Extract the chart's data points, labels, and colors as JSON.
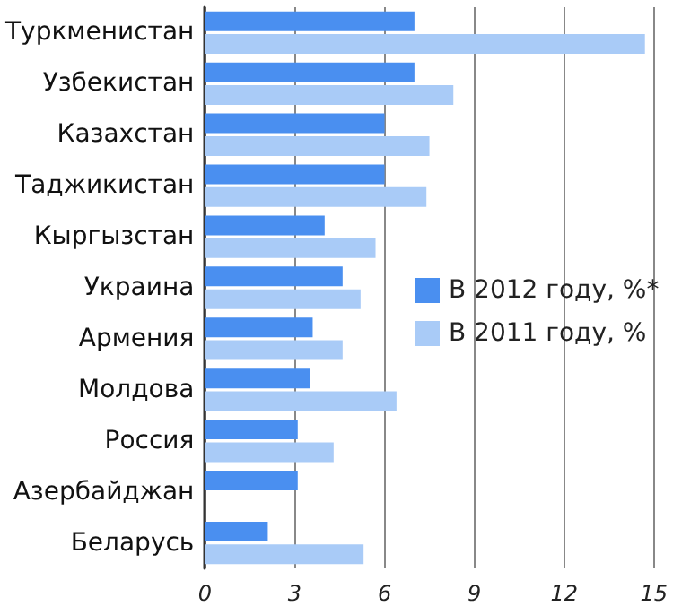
{
  "chart_data": {
    "type": "bar",
    "orientation": "horizontal",
    "categories": [
      "Туркменистан",
      "Узбекистан",
      "Казахстан",
      "Таджикистан",
      "Кыргызстан",
      "Украина",
      "Армения",
      "Молдова",
      "Россия",
      "Азербайджан",
      "Беларусь"
    ],
    "series": [
      {
        "name": "В 2012 году, %*",
        "color": "#4a8ff0",
        "values": [
          7.0,
          7.0,
          6.0,
          6.0,
          4.0,
          4.6,
          3.6,
          3.5,
          3.1,
          3.1,
          2.1
        ]
      },
      {
        "name": "В 2011 году, %",
        "color": "#a9cbf7",
        "values": [
          14.7,
          8.3,
          7.5,
          7.4,
          5.7,
          5.2,
          4.6,
          6.4,
          4.3,
          0,
          5.3
        ]
      }
    ],
    "xlim": [
      0,
      15
    ],
    "xticks": [
      0,
      3,
      6,
      9,
      12,
      15
    ],
    "grid": "x",
    "legend": "right"
  }
}
